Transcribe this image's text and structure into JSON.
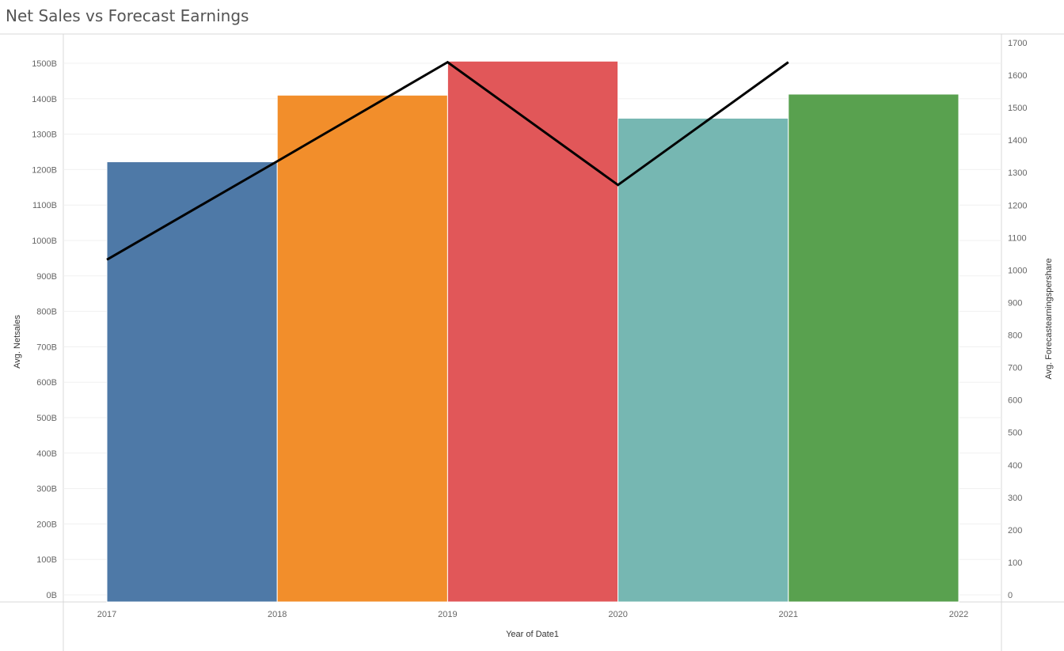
{
  "title": "Net Sales vs Forecast Earnings",
  "chart_data": {
    "type": "bar",
    "x": [
      "2017",
      "2018",
      "2019",
      "2020",
      "2021"
    ],
    "x_ticks": [
      "2017",
      "2018",
      "2019",
      "2020",
      "2021",
      "2022"
    ],
    "xlabel": "Year of Date1",
    "bar_series": {
      "name": "Avg. Netsales",
      "values": [
        1222,
        1410,
        1506,
        1345,
        1413
      ],
      "colors": [
        "#4e79a7",
        "#f28e2b",
        "#e15759",
        "#76b7b2",
        "#59a14f"
      ]
    },
    "line_series": {
      "name": "Avg. Forecastearningspershare",
      "x": [
        "2017",
        "2018",
        "2019",
        "2020",
        "2021"
      ],
      "values": [
        1032,
        1335,
        1640,
        1262,
        1640
      ],
      "color": "#000000"
    },
    "ylabel_left": "Avg. Netsales",
    "ylim_left": [
      0,
      1500
    ],
    "left_ticks": [
      "0B",
      "100B",
      "200B",
      "300B",
      "400B",
      "500B",
      "600B",
      "700B",
      "800B",
      "900B",
      "1000B",
      "1100B",
      "1200B",
      "1300B",
      "1400B",
      "1500B"
    ],
    "ylabel_right": "Avg. Forecastearningspershare",
    "ylim_right": [
      0,
      1700
    ],
    "right_ticks": [
      "0",
      "100",
      "200",
      "300",
      "400",
      "500",
      "600",
      "700",
      "800",
      "900",
      "1000",
      "1100",
      "1200",
      "1300",
      "1400",
      "1500",
      "1600",
      "1700"
    ],
    "grid": true
  }
}
